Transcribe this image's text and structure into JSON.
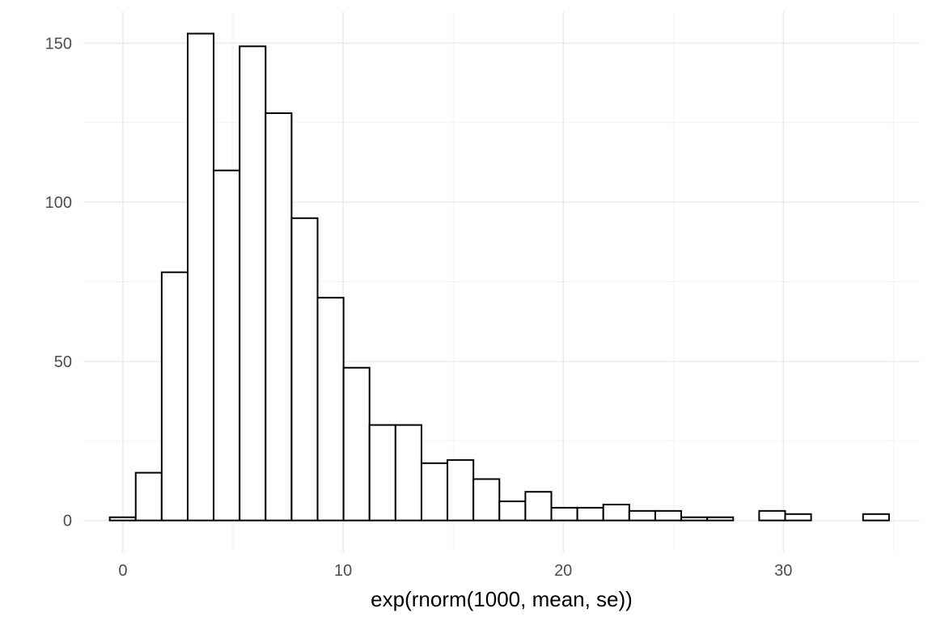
{
  "chart_data": {
    "type": "bar",
    "subtype": "histogram",
    "title": "",
    "xlabel": "exp(rnorm(1000, mean, se))",
    "ylabel": "",
    "xlim": [
      -1.8,
      36.2
    ],
    "ylim": [
      -10,
      160
    ],
    "x_ticks": [
      0,
      10,
      20,
      30
    ],
    "x_tick_labels": [
      "0",
      "10",
      "20",
      "30"
    ],
    "y_ticks": [
      0,
      50,
      100,
      150
    ],
    "y_tick_labels": [
      "0",
      "50",
      "100",
      "150"
    ],
    "grid": true,
    "bin_width": 1.18,
    "bins": [
      {
        "x0": -0.6,
        "x1": 0.58,
        "count": 1
      },
      {
        "x0": 0.58,
        "x1": 1.76,
        "count": 15
      },
      {
        "x0": 1.76,
        "x1": 2.94,
        "count": 78
      },
      {
        "x0": 2.94,
        "x1": 4.12,
        "count": 153
      },
      {
        "x0": 4.12,
        "x1": 5.3,
        "count": 110
      },
      {
        "x0": 5.3,
        "x1": 6.48,
        "count": 149
      },
      {
        "x0": 6.48,
        "x1": 7.66,
        "count": 128
      },
      {
        "x0": 7.66,
        "x1": 8.84,
        "count": 95
      },
      {
        "x0": 8.84,
        "x1": 10.02,
        "count": 70
      },
      {
        "x0": 10.02,
        "x1": 11.2,
        "count": 48
      },
      {
        "x0": 11.2,
        "x1": 12.38,
        "count": 30
      },
      {
        "x0": 12.38,
        "x1": 13.56,
        "count": 30
      },
      {
        "x0": 13.56,
        "x1": 14.74,
        "count": 18
      },
      {
        "x0": 14.74,
        "x1": 15.92,
        "count": 19
      },
      {
        "x0": 15.92,
        "x1": 17.1,
        "count": 13
      },
      {
        "x0": 17.1,
        "x1": 18.28,
        "count": 6
      },
      {
        "x0": 18.28,
        "x1": 19.46,
        "count": 9
      },
      {
        "x0": 19.46,
        "x1": 20.64,
        "count": 4
      },
      {
        "x0": 20.64,
        "x1": 21.82,
        "count": 4
      },
      {
        "x0": 21.82,
        "x1": 23.0,
        "count": 5
      },
      {
        "x0": 23.0,
        "x1": 24.18,
        "count": 3
      },
      {
        "x0": 24.18,
        "x1": 25.36,
        "count": 3
      },
      {
        "x0": 25.36,
        "x1": 26.54,
        "count": 1
      },
      {
        "x0": 26.54,
        "x1": 27.72,
        "count": 1
      },
      {
        "x0": 27.72,
        "x1": 28.9,
        "count": 0
      },
      {
        "x0": 28.9,
        "x1": 30.08,
        "count": 3
      },
      {
        "x0": 30.08,
        "x1": 31.26,
        "count": 2
      },
      {
        "x0": 31.26,
        "x1": 32.44,
        "count": 0
      },
      {
        "x0": 32.44,
        "x1": 33.62,
        "count": 0
      },
      {
        "x0": 33.62,
        "x1": 34.8,
        "count": 2
      }
    ],
    "colors": {
      "bar_fill": "#ffffff",
      "bar_stroke": "#000000",
      "grid": "#ebebeb",
      "tick_text": "#4d4d4d"
    }
  }
}
